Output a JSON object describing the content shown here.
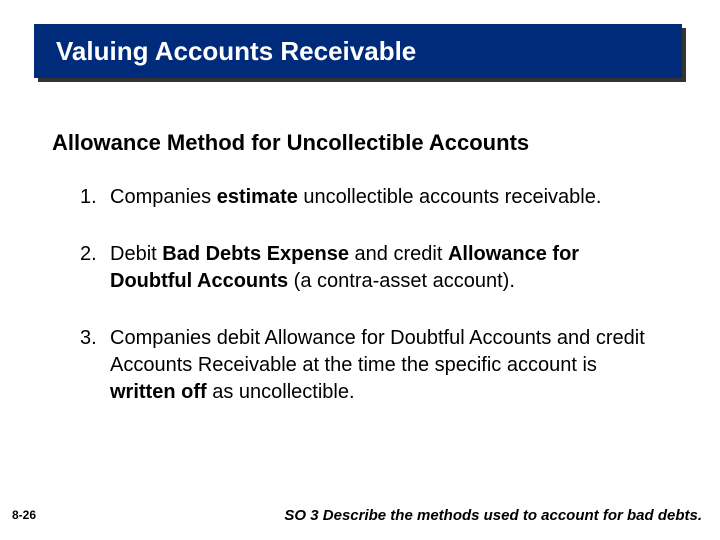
{
  "colors": {
    "banner_bg": "#002b7a",
    "banner_shadow": "#333333",
    "banner_text": "#ffffff",
    "body_text": "#000000",
    "page_bg": "#ffffff"
  },
  "typography": {
    "title_fontsize": 26,
    "subtitle_fontsize": 22,
    "body_fontsize": 20,
    "footer_fontsize": 15,
    "pagenum_fontsize": 12,
    "font_family": "Arial"
  },
  "title": "Valuing Accounts Receivable",
  "subtitle": "Allowance Method for Uncollectible Accounts",
  "items": [
    {
      "num": "1.",
      "segments": [
        {
          "t": "Companies ",
          "b": false
        },
        {
          "t": "estimate",
          "b": true
        },
        {
          "t": " uncollectible accounts receivable.",
          "b": false
        }
      ]
    },
    {
      "num": "2.",
      "segments": [
        {
          "t": "Debit ",
          "b": false
        },
        {
          "t": "Bad Debts Expense",
          "b": true
        },
        {
          "t": " and credit ",
          "b": false
        },
        {
          "t": "Allowance for Doubtful Accounts",
          "b": true
        },
        {
          "t": " (a contra-asset account).",
          "b": false
        }
      ]
    },
    {
      "num": "3.",
      "segments": [
        {
          "t": "Companies debit Allowance for Doubtful Accounts and credit Accounts Receivable at the time the specific account is ",
          "b": false
        },
        {
          "t": "written off",
          "b": true
        },
        {
          "t": " as uncollectible.",
          "b": false
        }
      ]
    }
  ],
  "page_number": "8-26",
  "footer": "SO 3  Describe the methods used to account for bad debts."
}
